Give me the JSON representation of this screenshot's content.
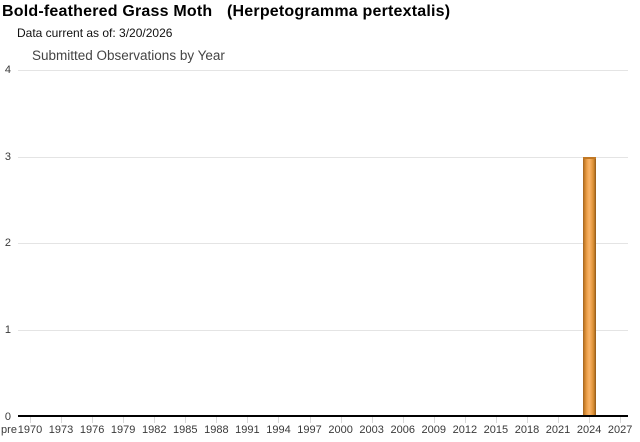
{
  "page": {
    "title_common": "Bold-feathered Grass Moth",
    "title_scientific": "(Herpetogramma pertextalis)",
    "data_current": "Data current as of: 3/20/2026"
  },
  "chart_data": {
    "type": "bar",
    "title": "Submitted Observations by Year",
    "xlabel": "",
    "ylabel": "",
    "x_tick_labels": [
      "pre",
      "1970",
      "1973",
      "1976",
      "1979",
      "1982",
      "1985",
      "1988",
      "1991",
      "1994",
      "1997",
      "2000",
      "2003",
      "2006",
      "2009",
      "2012",
      "2015",
      "2018",
      "2021",
      "2024",
      "2027"
    ],
    "values": [
      0,
      0,
      0,
      0,
      0,
      0,
      0,
      0,
      0,
      0,
      0,
      0,
      0,
      0,
      0,
      0,
      0,
      0,
      0,
      3,
      0
    ],
    "bars": [
      {
        "year": "2024",
        "value": 3
      }
    ],
    "y_ticks": [
      0,
      1,
      2,
      3,
      4
    ],
    "ylim": [
      0,
      4
    ],
    "grid": "horizontal-only",
    "legend": "none",
    "colors": {
      "bar_light": "#f8b469",
      "bar_mid": "#eda04a",
      "bar_dark": "#a06320",
      "bar_cap": "#c17824",
      "gridline": "#e4e4e4",
      "axis_line": "#000000",
      "tick_mark": "#d8d8d8",
      "tick_label": "#3a3a3a",
      "chart_title": "#444444"
    }
  }
}
